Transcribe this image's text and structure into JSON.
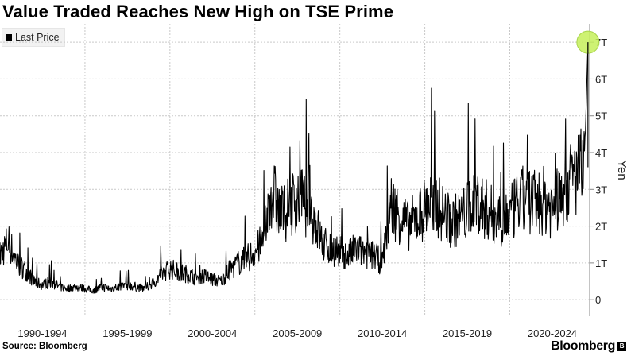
{
  "chart_data": {
    "type": "line",
    "title": "Value Traded Reaches New High on TSE Prime",
    "legend": [
      {
        "label": "Last Price",
        "color": "#000000"
      }
    ],
    "ylabel": "Yen",
    "ylim": [
      -0.45,
      7.5
    ],
    "yticks": [
      {
        "value": 0,
        "label": "0"
      },
      {
        "value": 1,
        "label": "1T"
      },
      {
        "value": 2,
        "label": "2T"
      },
      {
        "value": 3,
        "label": "3T"
      },
      {
        "value": 4,
        "label": "4T"
      },
      {
        "value": 5,
        "label": "5T"
      },
      {
        "value": 6,
        "label": "6T"
      },
      {
        "value": 7,
        "label": "7T"
      }
    ],
    "xlim": [
      1990.0,
      2024.7
    ],
    "x_categories": [
      "1990-1994",
      "1995-1999",
      "2000-2004",
      "2005-2009",
      "2010-2014",
      "2015-2019",
      "2020-2024"
    ],
    "series": [
      {
        "name": "Last Price",
        "color": "#000000",
        "points": [
          [
            1990.0,
            1.2
          ],
          [
            1990.5,
            1.6
          ],
          [
            1991.0,
            1.0
          ],
          [
            1991.5,
            0.8
          ],
          [
            1992.0,
            0.5
          ],
          [
            1992.5,
            0.4
          ],
          [
            1993.0,
            0.5
          ],
          [
            1993.5,
            0.35
          ],
          [
            1994.0,
            0.3
          ],
          [
            1994.5,
            0.35
          ],
          [
            1995.0,
            0.3
          ],
          [
            1995.5,
            0.25
          ],
          [
            1996.0,
            0.35
          ],
          [
            1996.5,
            0.3
          ],
          [
            1997.0,
            0.35
          ],
          [
            1997.5,
            0.4
          ],
          [
            1998.0,
            0.35
          ],
          [
            1998.5,
            0.3
          ],
          [
            1999.0,
            0.45
          ],
          [
            1999.5,
            0.7
          ],
          [
            2000.0,
            0.85
          ],
          [
            2000.5,
            0.75
          ],
          [
            2001.0,
            0.7
          ],
          [
            2001.5,
            0.6
          ],
          [
            2002.0,
            0.65
          ],
          [
            2002.5,
            0.55
          ],
          [
            2003.0,
            0.5
          ],
          [
            2003.5,
            0.8
          ],
          [
            2004.0,
            1.0
          ],
          [
            2004.5,
            1.1
          ],
          [
            2005.0,
            1.3
          ],
          [
            2005.5,
            1.6
          ],
          [
            2006.0,
            3.0
          ],
          [
            2006.5,
            2.3
          ],
          [
            2007.0,
            2.5
          ],
          [
            2007.5,
            2.8
          ],
          [
            2008.0,
            2.6
          ],
          [
            2008.5,
            2.2
          ],
          [
            2009.0,
            1.5
          ],
          [
            2009.5,
            1.4
          ],
          [
            2010.0,
            1.3
          ],
          [
            2010.5,
            1.2
          ],
          [
            2011.0,
            1.4
          ],
          [
            2011.5,
            1.2
          ],
          [
            2012.0,
            1.2
          ],
          [
            2012.5,
            1.0
          ],
          [
            2013.0,
            2.6
          ],
          [
            2013.5,
            2.3
          ],
          [
            2014.0,
            2.0
          ],
          [
            2014.5,
            2.2
          ],
          [
            2015.0,
            2.5
          ],
          [
            2015.5,
            2.7
          ],
          [
            2016.0,
            2.4
          ],
          [
            2016.5,
            2.1
          ],
          [
            2017.0,
            2.2
          ],
          [
            2017.5,
            2.4
          ],
          [
            2018.0,
            2.7
          ],
          [
            2018.5,
            2.5
          ],
          [
            2019.0,
            2.3
          ],
          [
            2019.5,
            2.2
          ],
          [
            2020.0,
            2.3
          ],
          [
            2020.5,
            2.6
          ],
          [
            2021.0,
            2.8
          ],
          [
            2021.5,
            2.6
          ],
          [
            2022.0,
            2.7
          ],
          [
            2022.5,
            2.5
          ],
          [
            2023.0,
            2.8
          ],
          [
            2023.5,
            3.2
          ],
          [
            2024.0,
            3.4
          ],
          [
            2024.45,
            3.6
          ]
        ]
      }
    ],
    "highlight": {
      "x": 2024.6,
      "value": 7.0
    }
  },
  "source": "Source: Bloomberg",
  "brand": {
    "name": "Bloomberg",
    "icon": "B"
  }
}
